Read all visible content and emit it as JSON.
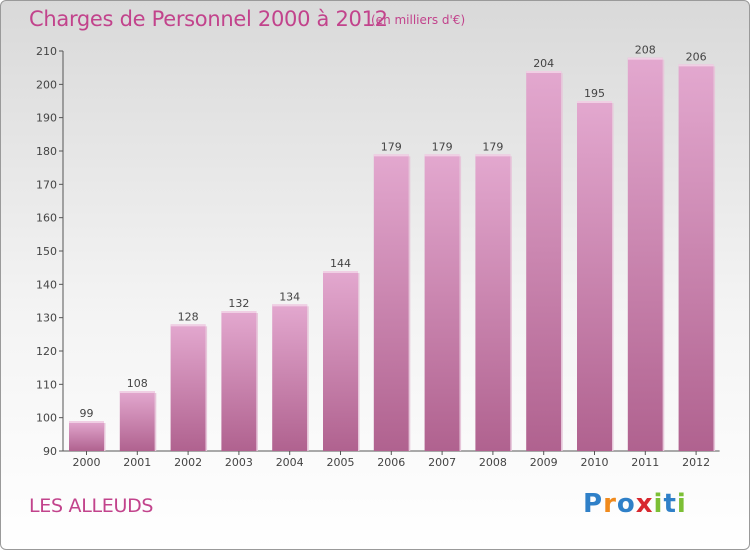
{
  "title": "Charges de Personnel 2000 à 2012",
  "subtitle": "(en milliers d'€)",
  "location": "LES ALLEUDS",
  "logo": {
    "letters": [
      "P",
      "r",
      "o",
      "x",
      "i",
      "t",
      "i"
    ],
    "colors": [
      "#2f80c8",
      "#f08a1c",
      "#2f80c8",
      "#d8282f",
      "#7cbf35",
      "#2f80c8",
      "#7cbf35"
    ]
  },
  "colors": {
    "accent": "#c2438c",
    "bar_top": "#e3a8cf",
    "bar_bottom": "#b0628f",
    "bar_highlight": "#f0cfe4",
    "label": "#444444"
  },
  "chart_data": {
    "type": "bar",
    "categories": [
      "2000",
      "2001",
      "2002",
      "2003",
      "2004",
      "2005",
      "2006",
      "2007",
      "2008",
      "2009",
      "2010",
      "2011",
      "2012"
    ],
    "values": [
      99,
      108,
      128,
      132,
      134,
      144,
      179,
      179,
      179,
      204,
      195,
      208,
      206
    ],
    "ylim": [
      90,
      210
    ],
    "yticks": [
      90,
      100,
      110,
      120,
      130,
      140,
      150,
      160,
      170,
      180,
      190,
      200,
      210
    ],
    "grid": false,
    "data_labels": true
  }
}
